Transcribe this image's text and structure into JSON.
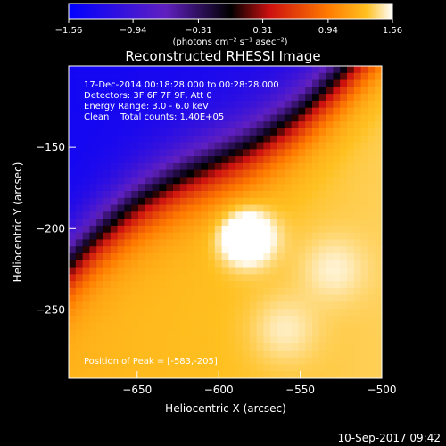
{
  "chart_data": {
    "type": "heatmap",
    "title": "Reconstructed RHESSI Image",
    "xlabel": "Heliocentric X (arcsec)",
    "ylabel": "Heliocentric Y (arcsec)",
    "xlim": [
      -692,
      -500
    ],
    "ylim": [
      -292,
      -100
    ],
    "x_ticks": [
      -650,
      -600,
      -550,
      -500
    ],
    "x_tick_labels": [
      "−650",
      "−600",
      "−550",
      "−500"
    ],
    "y_ticks": [
      -150,
      -200,
      -250
    ],
    "y_tick_labels": [
      "−150",
      "−200",
      "−250"
    ],
    "colorbar": {
      "min": -1.56,
      "max": 1.56,
      "ticks": [
        -1.56,
        -0.94,
        -0.31,
        0.31,
        0.94,
        1.56
      ],
      "tick_labels": [
        "−1.56",
        "−0.94",
        "−0.31",
        "0.31",
        "0.94",
        "1.56"
      ],
      "unit_label": "(photons cm⁻² s⁻¹ asec⁻²)"
    },
    "annotations": [
      "17-Dec-2014 00:18:28.000 to 00:28:28.000",
      "Detectors: 3F 6F 7F 9F, Att 0",
      "Energy Range: 3.0 - 6.0 keV",
      "Clean    Total counts: 1.40E+05"
    ],
    "peak_label": "Position of Peak = [-583,-205]",
    "peak": [
      -583,
      -205
    ],
    "secondary_sources": [
      [
        -530,
        -225
      ],
      [
        -560,
        -262
      ]
    ],
    "colors": [
      "#0000ff",
      "#6020c0",
      "#000000",
      "#cc1010",
      "#ff7a00",
      "#ffc020",
      "#ffffff"
    ]
  },
  "footer": {
    "date": "10-Sep-2017 09:42"
  }
}
